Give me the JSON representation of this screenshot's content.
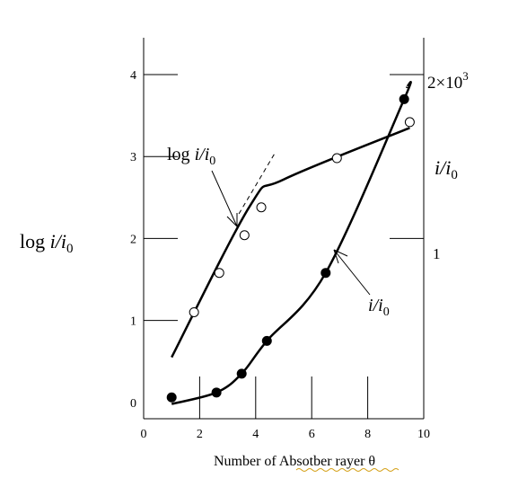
{
  "chart_data": {
    "type": "scatter",
    "xlabel": "Number of Absotber rayer θ",
    "ylabel_left": {
      "base": "log ",
      "i": "i",
      "slash": "/",
      "i0": "i",
      "sub": "0"
    },
    "ylabel_right": {
      "i": "i",
      "slash": "/",
      "i0": "i",
      "sub": "0"
    },
    "x_ticks": [
      "0",
      "2",
      "4",
      "6",
      "8",
      "10"
    ],
    "x_tick_values": [
      0,
      2,
      4,
      6,
      8,
      10
    ],
    "xlim": [
      0,
      10
    ],
    "left_axis": {
      "ticks": [
        "0",
        "1",
        "2",
        "3",
        "4"
      ],
      "tick_values": [
        0,
        1,
        2,
        3,
        4
      ],
      "ylim": [
        -0.2,
        4.45
      ]
    },
    "right_axis": {
      "tick_labels": [
        {
          "base": "2×10",
          "exp": "3",
          "value": 2000
        },
        {
          "text": "1",
          "value": 1
        }
      ]
    },
    "annotations": {
      "log_curve": {
        "base": "log ",
        "i": "i",
        "slash": "/",
        "i0": "i",
        "sub": "0"
      },
      "ratio_curve": {
        "i": "i",
        "slash": "/",
        "i0": "i",
        "sub": "0"
      }
    },
    "series": [
      {
        "marker": "open-circle",
        "x": [
          1.8,
          2.7,
          3.6,
          4.2,
          6.9,
          9.5
        ],
        "y": [
          1.1,
          1.58,
          2.04,
          2.38,
          2.98,
          3.42
        ],
        "curve_x": [
          1.0,
          3.8,
          5.0,
          9.5
        ],
        "curve_y": [
          0.55,
          2.4,
          2.72,
          3.35
        ]
      },
      {
        "marker": "filled-circle",
        "x": [
          1.0,
          2.6,
          3.5,
          4.4,
          6.5,
          9.3
        ],
        "y": [
          0.06,
          0.12,
          0.35,
          0.75,
          1.58,
          3.7
        ],
        "curve_x": [
          1.0,
          2.6,
          3.5,
          4.4,
          6.5,
          9.3,
          9.4
        ],
        "curve_y": [
          -0.02,
          0.12,
          0.35,
          0.75,
          1.58,
          3.7,
          3.85
        ]
      }
    ],
    "tangent_line": {
      "x": [
        3.4,
        4.7
      ],
      "y": [
        2.3,
        3.05
      ]
    },
    "grid": false
  }
}
